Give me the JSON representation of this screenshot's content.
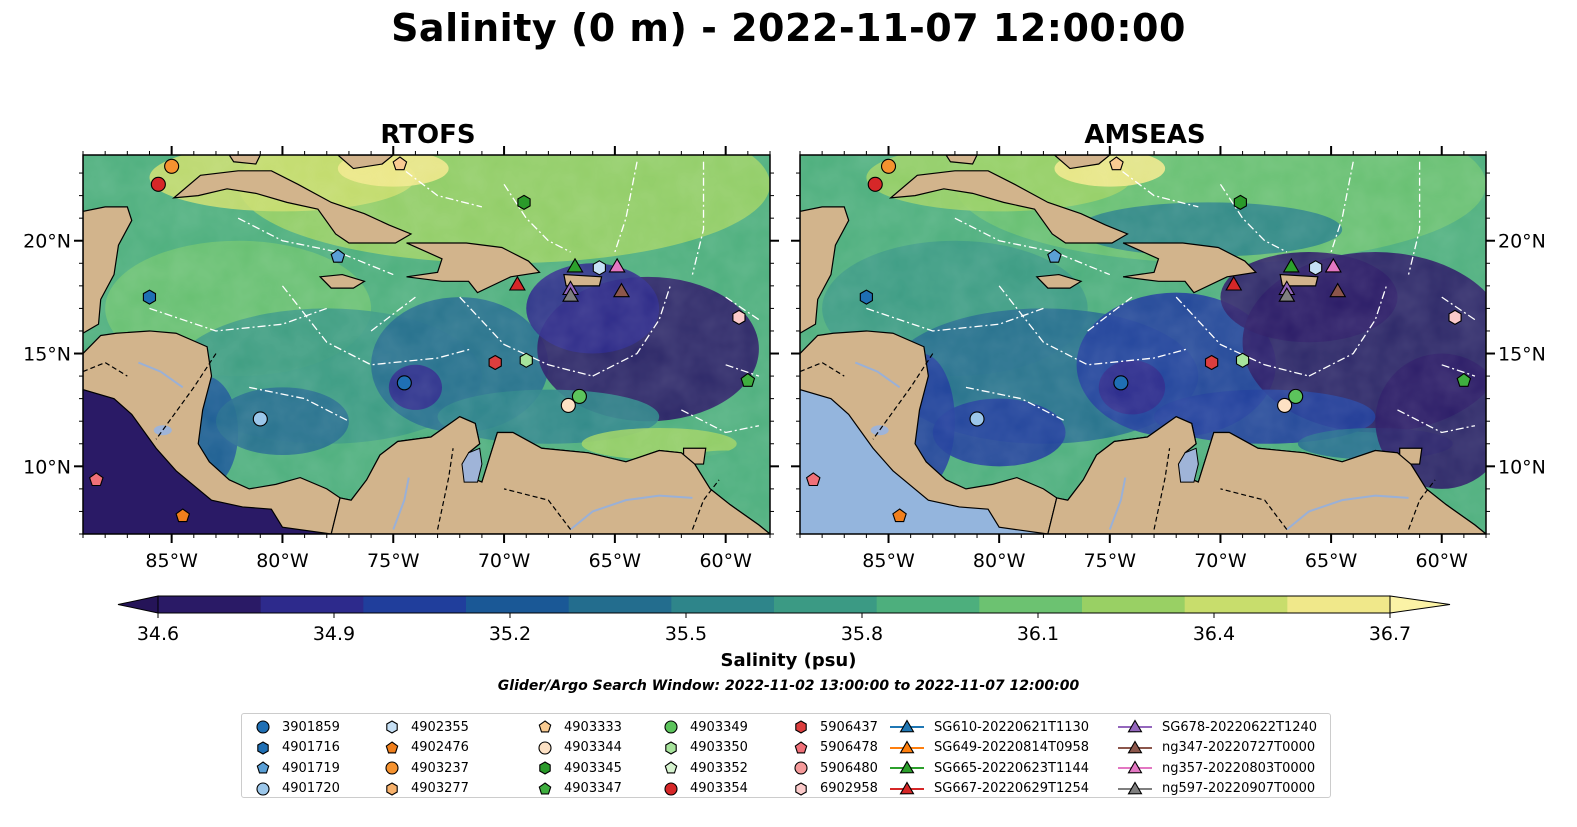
{
  "title": "Salinity (0 m) - 2022-11-07 12:00:00",
  "panels": [
    {
      "title": "RTOFS"
    },
    {
      "title": "AMSEAS"
    }
  ],
  "axes": {
    "lon_ticks": [
      "85°W",
      "80°W",
      "75°W",
      "70°W",
      "65°W",
      "60°W"
    ],
    "lat_ticks": [
      "20°N",
      "15°N",
      "10°N"
    ]
  },
  "colorbar": {
    "label": "Salinity (psu)",
    "range": [
      34.6,
      36.7
    ],
    "ticks": [
      "34.6",
      "34.9",
      "35.2",
      "35.5",
      "35.8",
      "36.1",
      "36.4",
      "36.7"
    ],
    "colormap": [
      "#2a1a66",
      "#2d2a8c",
      "#203e9c",
      "#1a5896",
      "#236d8e",
      "#2e858a",
      "#3b9a84",
      "#4daf7d",
      "#6cc271",
      "#99d064",
      "#c8dd6c",
      "#f0e88a"
    ]
  },
  "colors": {
    "land": "#d2b48c",
    "pacific_amseas": "#94b5dd",
    "lakes": "#9fb4d8",
    "grid_lines": "#ffffff"
  },
  "search_window": "Glider/Argo Search Window: 2022-11-02 13:00:00 to 2022-11-07 12:00:00",
  "legend": {
    "columns": [
      [
        {
          "label": "3901859",
          "marker": "circle",
          "color": "#1f6fb4"
        },
        {
          "label": "4901716",
          "marker": "hexagon",
          "color": "#1f6fb4"
        },
        {
          "label": "4901719",
          "marker": "pentagon",
          "color": "#5a9fd6"
        },
        {
          "label": "4901720",
          "marker": "circle",
          "color": "#9cc7ea"
        }
      ],
      [
        {
          "label": "4902355",
          "marker": "hexagon",
          "color": "#c6e0f5"
        },
        {
          "label": "4902476",
          "marker": "pentagon",
          "color": "#f07f1c"
        },
        {
          "label": "4903237",
          "marker": "circle",
          "color": "#f5922f"
        },
        {
          "label": "4903277",
          "marker": "hexagon",
          "color": "#f7b16b"
        }
      ],
      [
        {
          "label": "4903333",
          "marker": "pentagon",
          "color": "#f9cb92"
        },
        {
          "label": "4903344",
          "marker": "circle",
          "color": "#fde1c4"
        },
        {
          "label": "4903345",
          "marker": "hexagon",
          "color": "#2a9a2a"
        },
        {
          "label": "4903347",
          "marker": "pentagon",
          "color": "#3fae3f"
        }
      ],
      [
        {
          "label": "4903349",
          "marker": "circle",
          "color": "#5cc45c"
        },
        {
          "label": "4903350",
          "marker": "hexagon",
          "color": "#a6e39b"
        },
        {
          "label": "4903352",
          "marker": "pentagon",
          "color": "#d6f3cf"
        },
        {
          "label": "4903354",
          "marker": "circle",
          "color": "#d62728"
        }
      ],
      [
        {
          "label": "5906437",
          "marker": "hexagon",
          "color": "#dc3e3e"
        },
        {
          "label": "5906478",
          "marker": "pentagon",
          "color": "#f07078"
        },
        {
          "label": "5906480",
          "marker": "circle",
          "color": "#f59a9a"
        },
        {
          "label": "6902958",
          "marker": "hexagon",
          "color": "#fbcaca"
        }
      ],
      [
        {
          "label": "SG610-20220621T1130",
          "marker": "triangle",
          "color": "#1f77b4"
        },
        {
          "label": "SG649-20220814T0958",
          "marker": "triangle",
          "color": "#ff7f0e"
        },
        {
          "label": "SG665-20220623T1144",
          "marker": "triangle",
          "color": "#2ca02c"
        },
        {
          "label": "SG667-20220629T1254",
          "marker": "triangle",
          "color": "#d62728"
        }
      ],
      [
        {
          "label": "SG678-20220622T1240",
          "marker": "triangle",
          "color": "#9467bd"
        },
        {
          "label": "ng347-20220727T0000",
          "marker": "triangle",
          "color": "#8c564b"
        },
        {
          "label": "ng357-20220803T0000",
          "marker": "triangle",
          "color": "#e377c2"
        },
        {
          "label": "ng597-20220907T0000",
          "marker": "triangle",
          "color": "#7f7f7f"
        }
      ]
    ]
  },
  "platform_positions": [
    {
      "id": "4903237",
      "lon": -85.0,
      "lat": 23.3
    },
    {
      "id": "4903354",
      "lon": -85.6,
      "lat": 22.5
    },
    {
      "id": "4903333",
      "lon": -74.7,
      "lat": 23.4
    },
    {
      "id": "4903345",
      "lon": -69.1,
      "lat": 21.7
    },
    {
      "id": "4901719",
      "lon": -77.5,
      "lat": 19.3
    },
    {
      "id": "4901716",
      "lon": -86.0,
      "lat": 17.5
    },
    {
      "id": "4902355",
      "lon": -65.7,
      "lat": 18.8
    },
    {
      "id": "6902958",
      "lon": -59.4,
      "lat": 16.6
    },
    {
      "id": "3901859",
      "lon": -74.5,
      "lat": 13.7
    },
    {
      "id": "5906437",
      "lon": -70.4,
      "lat": 14.6
    },
    {
      "id": "4903350",
      "lon": -69.0,
      "lat": 14.7
    },
    {
      "id": "4903347",
      "lon": -59.0,
      "lat": 13.8
    },
    {
      "id": "4903349",
      "lon": -66.6,
      "lat": 13.1
    },
    {
      "id": "4903344",
      "lon": -67.1,
      "lat": 12.7
    },
    {
      "id": "4901720",
      "lon": -81.0,
      "lat": 12.1
    },
    {
      "id": "5906478",
      "lon": -88.4,
      "lat": 9.4
    },
    {
      "id": "4902476",
      "lon": -84.5,
      "lat": 7.8
    },
    {
      "id": "SG665-20220623T1144",
      "lon": -66.8,
      "lat": 18.9
    },
    {
      "id": "ng357-20220803T0000",
      "lon": -64.9,
      "lat": 18.9
    },
    {
      "id": "SG667-20220629T1254",
      "lon": -69.4,
      "lat": 18.1
    },
    {
      "id": "SG678-20220622T1240",
      "lon": -67.0,
      "lat": 17.9
    },
    {
      "id": "ng597-20220907T0000",
      "lon": -67.0,
      "lat": 17.6
    },
    {
      "id": "ng347-20220727T0000",
      "lon": -64.7,
      "lat": 17.8
    }
  ]
}
